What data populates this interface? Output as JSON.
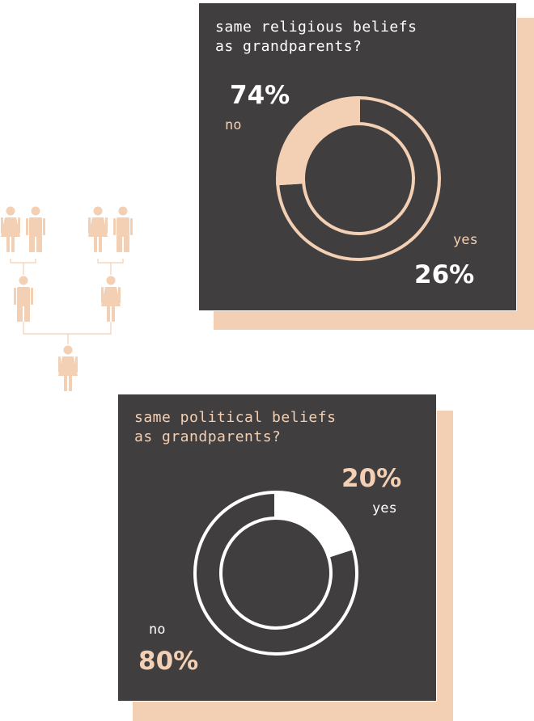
{
  "colors": {
    "panel": "#403e3f",
    "accent": "#f3cfb3",
    "white": "#ffffff"
  },
  "chart_data": [
    {
      "type": "pie",
      "title": "same religious beliefs\nas grandparents?",
      "slices": [
        {
          "label": "no",
          "value": 74,
          "display": "74%"
        },
        {
          "label": "yes",
          "value": 26,
          "display": "26%"
        }
      ]
    },
    {
      "type": "pie",
      "title": "same political beliefs\nas grandparents?",
      "slices": [
        {
          "label": "yes",
          "value": 20,
          "display": "20%"
        },
        {
          "label": "no",
          "value": 80,
          "display": "80%"
        }
      ]
    }
  ],
  "family_tree": {
    "generations": [
      {
        "role": "grandparents",
        "figures": [
          "grandmother",
          "grandfather",
          "grandmother",
          "grandfather"
        ]
      },
      {
        "role": "parents",
        "figures": [
          "father",
          "mother"
        ]
      },
      {
        "role": "child",
        "figures": [
          "daughter"
        ]
      }
    ]
  }
}
